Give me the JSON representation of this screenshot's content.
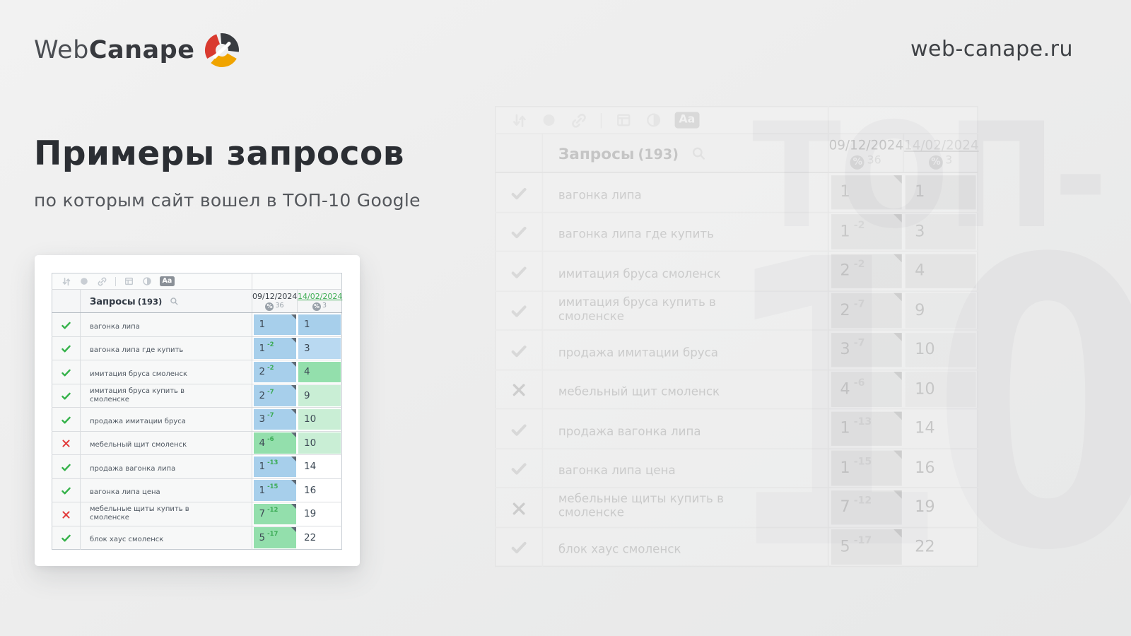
{
  "brand": {
    "logo_web": "Web",
    "logo_canape": "Canape",
    "site": "web-canape.ru"
  },
  "headline": {
    "title": "Примеры запросов",
    "subtitle": "по которым сайт вошел в ТОП-10 Google"
  },
  "watermark": {
    "line1": "ТОП-",
    "line2": "10"
  },
  "table": {
    "toolbar": {
      "icons": [
        "sort-icon",
        "bullet-icon",
        "link-icon",
        "divider",
        "grid-icon",
        "contrast-icon",
        "aa-badge"
      ],
      "aa_label": "Aa"
    },
    "header": {
      "queries_label": "Запросы",
      "queries_count": "(193)",
      "search_icon": "magnifier",
      "percent_symbol": "%",
      "columns": [
        {
          "date": "09/12/2024",
          "percent": "36",
          "style": "dark"
        },
        {
          "date": "14/02/2024",
          "percent": "3",
          "style": "green-underline"
        }
      ]
    },
    "rows": [
      {
        "status": "check",
        "query": "вагонка липа",
        "pos1": "1",
        "delta1": "",
        "bg1": "blue",
        "pos2": "1",
        "bg2": "blue"
      },
      {
        "status": "check",
        "query": "вагонка липа где купить",
        "pos1": "1",
        "delta1": "-2",
        "bg1": "blue",
        "pos2": "3",
        "bg2": "blue-light"
      },
      {
        "status": "check",
        "query": "имитация бруса смоленск",
        "pos1": "2",
        "delta1": "-2",
        "bg1": "blue",
        "pos2": "4",
        "bg2": "green"
      },
      {
        "status": "check",
        "query": "имитация бруса купить в смоленске",
        "pos1": "2",
        "delta1": "-7",
        "bg1": "blue",
        "pos2": "9",
        "bg2": "green-light"
      },
      {
        "status": "check",
        "query": "продажа имитации бруса",
        "pos1": "3",
        "delta1": "-7",
        "bg1": "blue",
        "pos2": "10",
        "bg2": "green-light"
      },
      {
        "status": "cross",
        "query": "мебельный щит смоленск",
        "pos1": "4",
        "delta1": "-6",
        "bg1": "green",
        "pos2": "10",
        "bg2": "green-light"
      },
      {
        "status": "check",
        "query": "продажа вагонка липа",
        "pos1": "1",
        "delta1": "-13",
        "bg1": "blue",
        "pos2": "14",
        "bg2": "white"
      },
      {
        "status": "check",
        "query": "вагонка липа цена",
        "pos1": "1",
        "delta1": "-15",
        "bg1": "blue",
        "pos2": "16",
        "bg2": "white"
      },
      {
        "status": "cross",
        "query": "мебельные щиты купить в смоленске",
        "pos1": "7",
        "delta1": "-12",
        "bg1": "green",
        "pos2": "19",
        "bg2": "white"
      },
      {
        "status": "check",
        "query": "блок хаус смоленск",
        "pos1": "5",
        "delta1": "-17",
        "bg1": "green",
        "pos2": "22",
        "bg2": "white"
      }
    ]
  },
  "colors": {
    "accent_green": "#3fae54",
    "status_red": "#e23c3c",
    "status_green": "#35b24a",
    "cell_blue": "#a7cfeb",
    "cell_blue_light": "#b9d9f1",
    "cell_green": "#93dfac",
    "cell_green_light": "#c9eed5",
    "logo_red": "#d93a2f",
    "logo_yellow": "#f0a400",
    "logo_dark": "#383b40",
    "watermark_gray": "#e3e3e4"
  }
}
